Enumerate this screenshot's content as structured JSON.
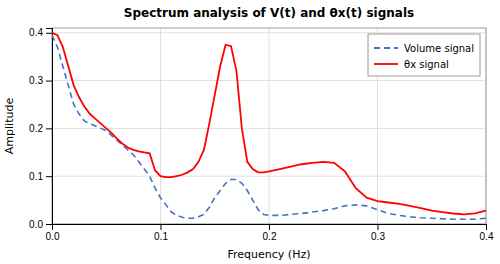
{
  "chart_data": {
    "type": "line",
    "title": "Spectrum analysis of V(t) and θx(t) signals",
    "xlabel": "Frequency (Hz)",
    "ylabel": "Amplitude",
    "x": [
      0.0,
      0.005,
      0.01,
      0.015,
      0.02,
      0.025,
      0.03,
      0.035,
      0.04,
      0.045,
      0.05,
      0.055,
      0.06,
      0.065,
      0.07,
      0.075,
      0.08,
      0.085,
      0.09,
      0.095,
      0.1,
      0.105,
      0.11,
      0.115,
      0.12,
      0.125,
      0.13,
      0.135,
      0.14,
      0.145,
      0.15,
      0.155,
      0.16,
      0.165,
      0.17,
      0.175,
      0.18,
      0.185,
      0.19,
      0.195,
      0.2,
      0.21,
      0.22,
      0.23,
      0.24,
      0.25,
      0.26,
      0.27,
      0.28,
      0.29,
      0.3,
      0.31,
      0.32,
      0.33,
      0.34,
      0.35,
      0.36,
      0.37,
      0.38,
      0.39,
      0.4
    ],
    "series": [
      {
        "name": "Volume signal",
        "color": "#4472C4",
        "line_style": "dashed",
        "values": [
          0.395,
          0.37,
          0.33,
          0.29,
          0.25,
          0.23,
          0.215,
          0.21,
          0.205,
          0.2,
          0.195,
          0.185,
          0.175,
          0.165,
          0.155,
          0.145,
          0.13,
          0.115,
          0.1,
          0.075,
          0.055,
          0.04,
          0.025,
          0.018,
          0.014,
          0.012,
          0.012,
          0.015,
          0.02,
          0.035,
          0.055,
          0.07,
          0.085,
          0.093,
          0.093,
          0.085,
          0.07,
          0.05,
          0.03,
          0.02,
          0.018,
          0.018,
          0.02,
          0.022,
          0.025,
          0.028,
          0.032,
          0.038,
          0.04,
          0.038,
          0.03,
          0.022,
          0.018,
          0.015,
          0.013,
          0.012,
          0.011,
          0.01,
          0.01,
          0.01,
          0.012
        ]
      },
      {
        "name": "θx signal",
        "color": "#FF0000",
        "line_style": "solid",
        "values": [
          0.4,
          0.395,
          0.37,
          0.33,
          0.29,
          0.265,
          0.245,
          0.23,
          0.22,
          0.21,
          0.2,
          0.19,
          0.178,
          0.168,
          0.16,
          0.155,
          0.152,
          0.15,
          0.148,
          0.112,
          0.1,
          0.098,
          0.098,
          0.1,
          0.103,
          0.108,
          0.115,
          0.13,
          0.155,
          0.21,
          0.27,
          0.33,
          0.375,
          0.372,
          0.32,
          0.2,
          0.13,
          0.115,
          0.108,
          0.108,
          0.11,
          0.115,
          0.12,
          0.125,
          0.128,
          0.13,
          0.128,
          0.11,
          0.075,
          0.055,
          0.048,
          0.045,
          0.042,
          0.038,
          0.033,
          0.028,
          0.025,
          0.022,
          0.02,
          0.022,
          0.028
        ]
      }
    ],
    "xlim": [
      0,
      0.4
    ],
    "ylim": [
      0,
      0.41
    ],
    "xticks": [
      {
        "value": 0,
        "label": "0.0"
      },
      0.1,
      0.2,
      0.3,
      0.4
    ],
    "yticks": [
      {
        "value": 0,
        "label": "0.0"
      },
      0.1,
      0.2,
      0.3,
      0.4
    ],
    "grid": true,
    "legend": "upper right"
  }
}
